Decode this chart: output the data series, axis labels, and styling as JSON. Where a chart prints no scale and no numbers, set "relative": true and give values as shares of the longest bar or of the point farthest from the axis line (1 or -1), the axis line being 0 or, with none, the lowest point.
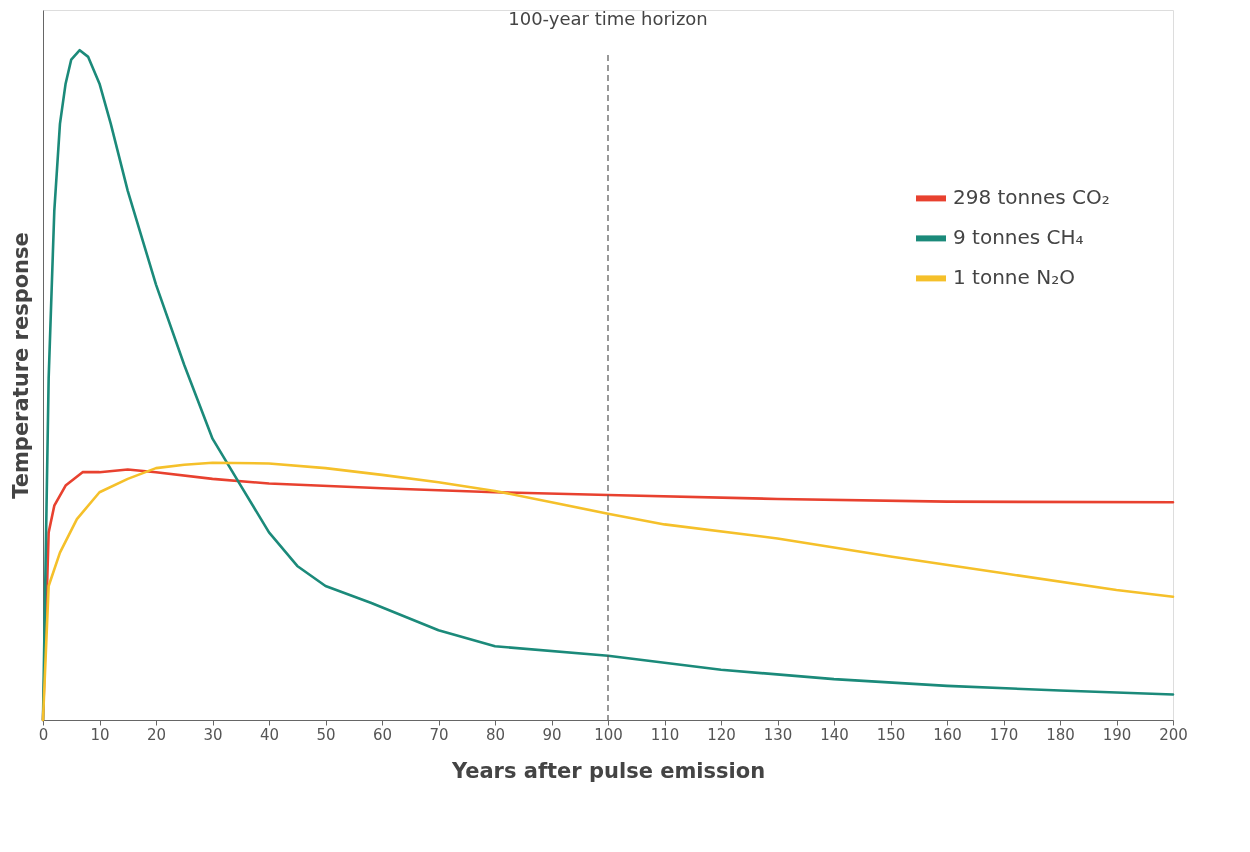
{
  "chart_data": {
    "type": "line",
    "relative": true,
    "xlabel": "Years after pulse emission",
    "ylabel": "Temperature response",
    "xlim": [
      0,
      200
    ],
    "xticks": [
      0,
      10,
      20,
      30,
      40,
      50,
      60,
      70,
      80,
      90,
      100,
      110,
      120,
      130,
      140,
      150,
      160,
      170,
      180,
      190,
      200
    ],
    "legend": "top right",
    "grid": false,
    "marker": "none",
    "line_style": "solid",
    "ref_lines": [
      {
        "axis": "x",
        "value": 100,
        "label": "100-year time horizon",
        "color": "#555555",
        "line_style": "dashed"
      }
    ],
    "series": [
      {
        "name": "298 tonnes CO₂",
        "color": "#e8412f",
        "x": [
          0,
          1,
          2,
          4,
          7,
          10,
          15,
          20,
          30,
          40,
          60,
          80,
          100,
          130,
          160,
          200
        ],
        "values": [
          0,
          0.28,
          0.32,
          0.35,
          0.37,
          0.37,
          0.374,
          0.37,
          0.36,
          0.353,
          0.346,
          0.34,
          0.336,
          0.33,
          0.326,
          0.325
        ]
      },
      {
        "name": "9 tonnes CH₄",
        "color": "#1b8a7a",
        "x": [
          0,
          1,
          2,
          3,
          4,
          5,
          6.5,
          8,
          10,
          12,
          15,
          20,
          25,
          30,
          35,
          40,
          45,
          50,
          58,
          70,
          80,
          100,
          120,
          140,
          160,
          180,
          200
        ],
        "values": [
          0,
          0.51,
          0.76,
          0.89,
          0.95,
          0.986,
          1,
          0.99,
          0.95,
          0.89,
          0.79,
          0.65,
          0.53,
          0.42,
          0.35,
          0.28,
          0.23,
          0.2,
          0.175,
          0.134,
          0.11,
          0.096,
          0.075,
          0.061,
          0.051,
          0.044,
          0.038
        ]
      },
      {
        "name": "1 tonne N₂O",
        "color": "#f5c02a",
        "x": [
          0,
          1,
          3,
          6,
          10,
          15,
          20,
          25,
          30,
          40,
          50,
          60,
          70,
          80,
          90,
          100,
          110,
          130,
          150,
          170,
          190,
          200
        ],
        "values": [
          0,
          0.2,
          0.25,
          0.3,
          0.34,
          0.36,
          0.376,
          0.381,
          0.384,
          0.383,
          0.376,
          0.366,
          0.355,
          0.342,
          0.325,
          0.308,
          0.292,
          0.271,
          0.244,
          0.219,
          0.194,
          0.184
        ]
      }
    ]
  }
}
